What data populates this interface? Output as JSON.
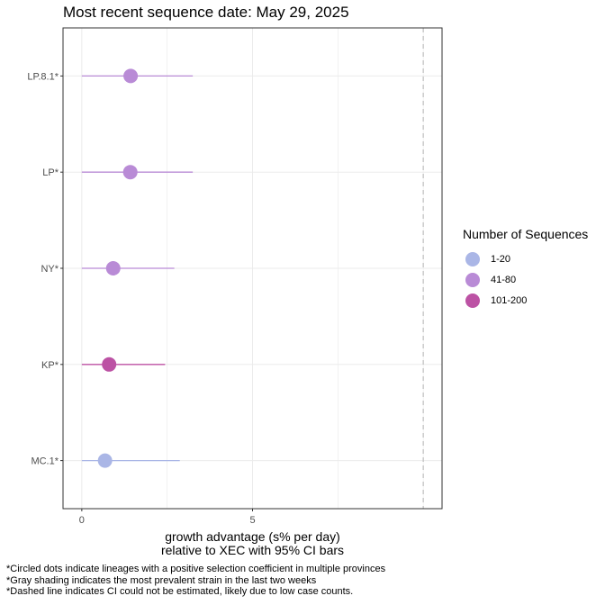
{
  "chart_data": {
    "type": "scatter",
    "title": "Most recent sequence date: May 29, 2025",
    "xlabel_line1": "growth advantage (s% per day)",
    "xlabel_line2": "relative to  XEC  with 95% CI bars",
    "xlim": [
      -0.55,
      10.55
    ],
    "xticks": [
      0,
      5
    ],
    "reference_line_x": 10.0,
    "categories": [
      "LP.8.1*",
      "LP*",
      "NY*",
      "KP*",
      "MC.1*"
    ],
    "points": [
      {
        "lineage": "LP.8.1*",
        "estimate": 1.43,
        "ci_low": 0.0,
        "ci_high": 3.25,
        "group": "41-80"
      },
      {
        "lineage": "LP*",
        "estimate": 1.42,
        "ci_low": 0.0,
        "ci_high": 3.25,
        "group": "41-80"
      },
      {
        "lineage": "NY*",
        "estimate": 0.92,
        "ci_low": 0.0,
        "ci_high": 2.71,
        "group": "41-80"
      },
      {
        "lineage": "KP*",
        "estimate": 0.8,
        "ci_low": 0.0,
        "ci_high": 2.44,
        "group": "101-200"
      },
      {
        "lineage": "MC.1*",
        "estimate": 0.68,
        "ci_low": 0.0,
        "ci_high": 2.87,
        "group": "1-20"
      }
    ],
    "legend": {
      "title": "Number of Sequences",
      "position": "right",
      "items": [
        {
          "label": "1-20",
          "color": "#aab6e6"
        },
        {
          "label": "41-80",
          "color": "#b98bd6"
        },
        {
          "label": "101-200",
          "color": "#bc52a4"
        }
      ]
    },
    "grid": true
  },
  "footnotes": [
    "*Circled dots indicate lineages with a positive selection coefficient in multiple provinces",
    "*Gray shading indicates the most prevalent strain in the last two weeks",
    "*Dashed line indicates CI could not be estimated, likely due to low case counts."
  ]
}
